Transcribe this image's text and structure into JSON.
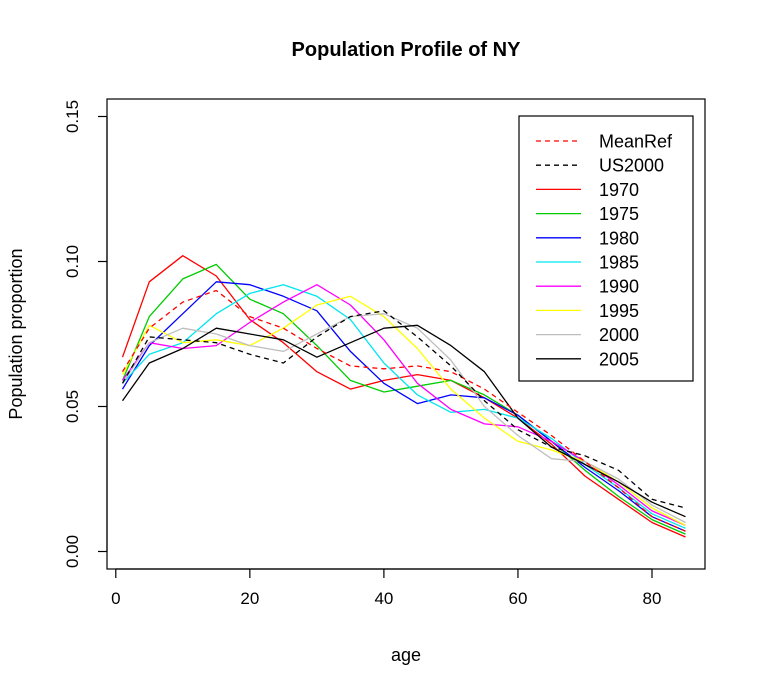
{
  "chart_data": {
    "type": "line",
    "title": "Population Profile of NY",
    "xlabel": "age",
    "ylabel": "Population proportion",
    "xlim": [
      0,
      85
    ],
    "ylim": [
      0,
      0.15
    ],
    "xticks": [
      0,
      20,
      40,
      60,
      80
    ],
    "yticks": [
      0.0,
      0.05,
      0.1,
      0.15
    ],
    "ytick_labels": [
      "0.00",
      "0.05",
      "0.10",
      "0.15"
    ],
    "grid": false,
    "legend_position": "top-right",
    "x": [
      1,
      5,
      10,
      15,
      20,
      25,
      30,
      35,
      40,
      45,
      50,
      55,
      60,
      65,
      70,
      75,
      80,
      85
    ],
    "series": [
      {
        "name": "MeanRef",
        "color": "#ff0000",
        "dash": true,
        "values": [
          0.062,
          0.077,
          0.086,
          0.09,
          0.081,
          0.077,
          0.07,
          0.064,
          0.063,
          0.064,
          0.062,
          0.056,
          0.048,
          0.04,
          0.031,
          0.022,
          0.012,
          0.007
        ]
      },
      {
        "name": "US2000",
        "color": "#000000",
        "dash": true,
        "values": [
          0.058,
          0.074,
          0.073,
          0.072,
          0.068,
          0.065,
          0.074,
          0.081,
          0.083,
          0.074,
          0.064,
          0.052,
          0.042,
          0.036,
          0.033,
          0.028,
          0.018,
          0.015
        ]
      },
      {
        "name": "1970",
        "color": "#ff0000",
        "dash": false,
        "values": [
          0.067,
          0.093,
          0.102,
          0.095,
          0.08,
          0.072,
          0.062,
          0.056,
          0.059,
          0.061,
          0.059,
          0.053,
          0.046,
          0.037,
          0.026,
          0.018,
          0.01,
          0.005
        ]
      },
      {
        "name": "1975",
        "color": "#00cc00",
        "dash": false,
        "values": [
          0.059,
          0.081,
          0.094,
          0.099,
          0.087,
          0.082,
          0.071,
          0.059,
          0.055,
          0.057,
          0.059,
          0.054,
          0.047,
          0.038,
          0.028,
          0.019,
          0.011,
          0.006
        ]
      },
      {
        "name": "1980",
        "color": "#0000ff",
        "dash": false,
        "values": [
          0.056,
          0.071,
          0.082,
          0.093,
          0.092,
          0.088,
          0.083,
          0.069,
          0.058,
          0.051,
          0.054,
          0.053,
          0.047,
          0.038,
          0.029,
          0.021,
          0.012,
          0.007
        ]
      },
      {
        "name": "1985",
        "color": "#00e5ee",
        "dash": false,
        "values": [
          0.058,
          0.068,
          0.072,
          0.082,
          0.089,
          0.092,
          0.088,
          0.08,
          0.065,
          0.054,
          0.048,
          0.049,
          0.046,
          0.039,
          0.03,
          0.022,
          0.013,
          0.008
        ]
      },
      {
        "name": "1990",
        "color": "#ff00ff",
        "dash": false,
        "values": [
          0.059,
          0.072,
          0.07,
          0.071,
          0.079,
          0.086,
          0.092,
          0.085,
          0.073,
          0.058,
          0.049,
          0.044,
          0.043,
          0.038,
          0.031,
          0.023,
          0.014,
          0.009
        ]
      },
      {
        "name": "1995",
        "color": "#ffff00",
        "dash": false,
        "values": [
          0.061,
          0.078,
          0.072,
          0.073,
          0.071,
          0.077,
          0.085,
          0.088,
          0.081,
          0.07,
          0.056,
          0.046,
          0.038,
          0.035,
          0.031,
          0.024,
          0.015,
          0.009
        ]
      },
      {
        "name": "2000",
        "color": "#bebebe",
        "dash": false,
        "values": [
          0.058,
          0.072,
          0.077,
          0.075,
          0.071,
          0.069,
          0.075,
          0.081,
          0.082,
          0.077,
          0.066,
          0.05,
          0.04,
          0.032,
          0.031,
          0.025,
          0.016,
          0.01
        ]
      },
      {
        "name": "2005",
        "color": "#000000",
        "dash": false,
        "values": [
          0.052,
          0.065,
          0.07,
          0.077,
          0.075,
          0.073,
          0.067,
          0.072,
          0.077,
          0.078,
          0.071,
          0.062,
          0.046,
          0.036,
          0.03,
          0.024,
          0.017,
          0.012
        ]
      }
    ]
  }
}
